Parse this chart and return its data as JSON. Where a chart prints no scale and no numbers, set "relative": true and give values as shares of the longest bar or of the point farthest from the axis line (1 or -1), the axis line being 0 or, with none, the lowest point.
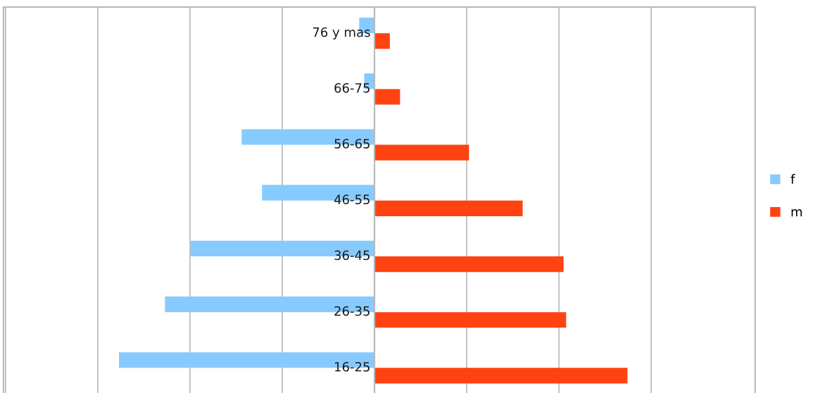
{
  "chart_data": {
    "type": "bar",
    "orientation": "horizontal",
    "relative": true,
    "grid": "x",
    "legend": "right",
    "categories": [
      "76 y mas",
      "66-75",
      "56-65",
      "46-55",
      "36-45",
      "26-35",
      "16-25"
    ],
    "series": [
      {
        "name": "f",
        "color": "#87cafe",
        "values": [
          -0.06,
          -0.04,
          -0.52,
          -0.44,
          -0.72,
          -0.82,
          -1
        ]
      },
      {
        "name": "m",
        "color": "#fe4210",
        "values": [
          0.06,
          0.1,
          0.37,
          0.58,
          0.74,
          0.75,
          0.99
        ]
      }
    ]
  }
}
